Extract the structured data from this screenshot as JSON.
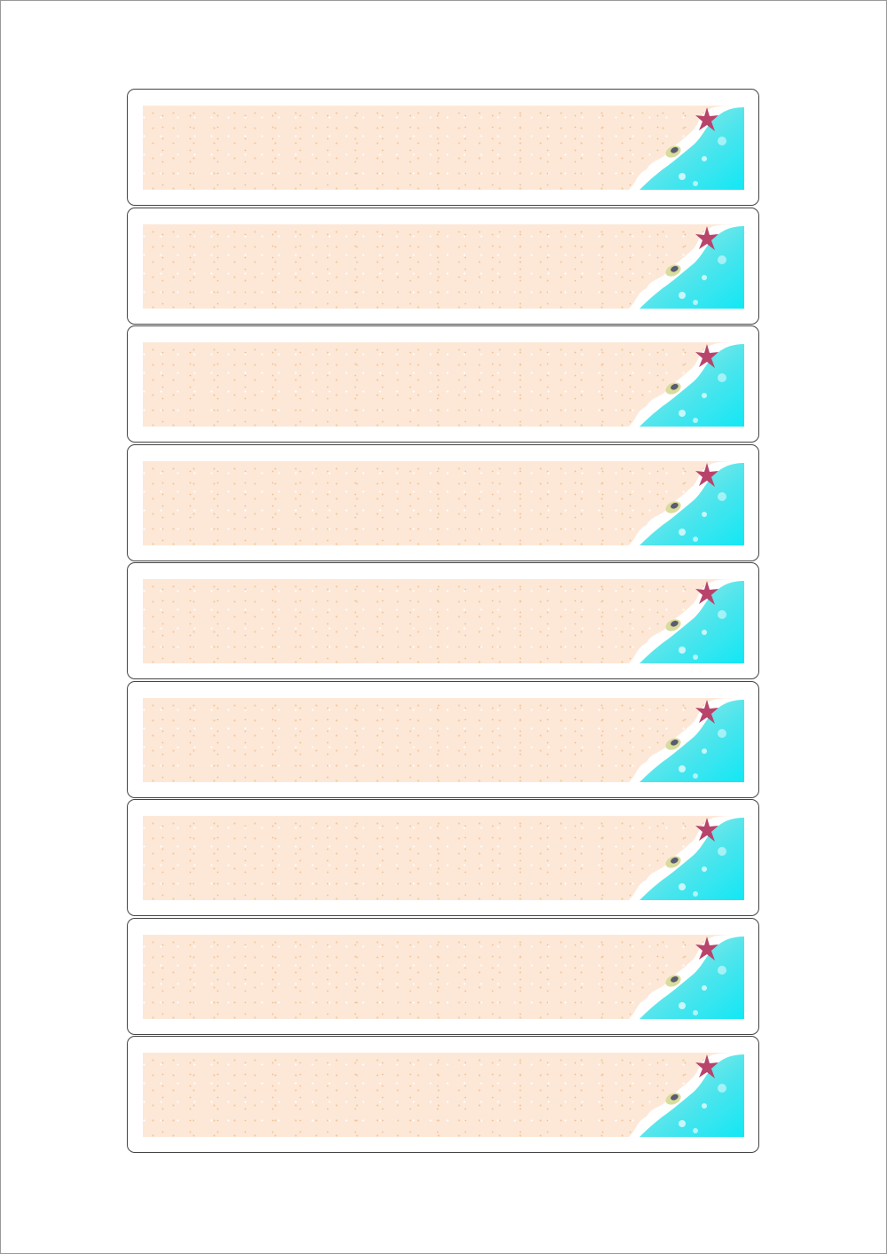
{
  "sheet": {
    "colors": {
      "sand": "#fde8d8",
      "sand_speckle": "#f3c99a",
      "water": "#29e0ea",
      "foam": "#ffffff",
      "starfish": "#b8446c",
      "shell": "#d8dc9c",
      "border": "#444444"
    },
    "decoration_icons": [
      "starfish-icon",
      "seashell-icon",
      "wave-icon"
    ]
  }
}
